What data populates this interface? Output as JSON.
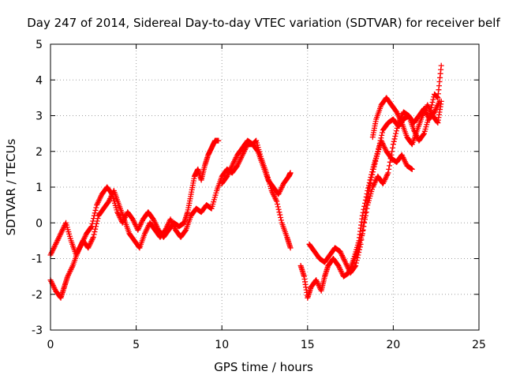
{
  "chart_data": {
    "type": "scatter",
    "title": "Day 247 of 2014, Sidereal Day-to-day VTEC variation (SDTVAR) for receiver belf",
    "xlabel": "GPS time / hours",
    "ylabel": "SDTVAR / TECUs",
    "xlim": [
      0,
      25
    ],
    "ylim": [
      -3,
      5
    ],
    "xticks": [
      0,
      5,
      10,
      15,
      20,
      25
    ],
    "yticks": [
      -3,
      -2,
      -1,
      0,
      1,
      2,
      3,
      4,
      5
    ],
    "grid": true,
    "marker": "+",
    "color": "#ff0000",
    "series": [
      {
        "name": "track-1",
        "points": [
          [
            0.0,
            -0.9
          ],
          [
            0.3,
            -0.6
          ],
          [
            0.6,
            -0.3
          ],
          [
            0.9,
            0.0
          ],
          [
            1.2,
            -0.5
          ],
          [
            1.5,
            -0.9
          ],
          [
            1.8,
            -0.6
          ],
          [
            2.1,
            -0.3
          ],
          [
            2.4,
            -0.1
          ],
          [
            2.7,
            0.5
          ],
          [
            3.0,
            0.8
          ],
          [
            3.3,
            1.0
          ],
          [
            3.6,
            0.8
          ],
          [
            3.9,
            0.3
          ],
          [
            4.2,
            0.0
          ],
          [
            4.5,
            0.3
          ],
          [
            4.8,
            0.1
          ],
          [
            5.1,
            -0.2
          ],
          [
            5.4,
            0.1
          ],
          [
            5.7,
            0.3
          ],
          [
            6.0,
            0.1
          ],
          [
            6.3,
            -0.2
          ],
          [
            6.6,
            -0.4
          ],
          [
            6.9,
            -0.2
          ],
          [
            7.2,
            0.0
          ],
          [
            7.5,
            -0.1
          ],
          [
            7.8,
            0.0
          ],
          [
            8.0,
            0.3
          ],
          [
            8.2,
            0.8
          ],
          [
            8.4,
            1.3
          ],
          [
            8.6,
            1.5
          ],
          [
            8.8,
            1.2
          ],
          [
            9.0,
            1.6
          ],
          [
            9.2,
            1.9
          ],
          [
            9.4,
            2.1
          ],
          [
            9.6,
            2.3
          ],
          [
            9.8,
            2.3
          ]
        ]
      },
      {
        "name": "track-2",
        "points": [
          [
            0.0,
            -1.6
          ],
          [
            0.3,
            -1.9
          ],
          [
            0.6,
            -2.1
          ],
          [
            0.8,
            -1.8
          ],
          [
            1.0,
            -1.5
          ],
          [
            1.3,
            -1.2
          ],
          [
            1.6,
            -0.8
          ],
          [
            1.9,
            -0.5
          ],
          [
            2.2,
            -0.7
          ],
          [
            2.5,
            -0.4
          ],
          [
            2.8,
            0.2
          ],
          [
            3.1,
            0.4
          ],
          [
            3.4,
            0.6
          ],
          [
            3.7,
            0.9
          ],
          [
            4.0,
            0.5
          ],
          [
            4.3,
            0.1
          ],
          [
            4.6,
            -0.3
          ],
          [
            4.9,
            -0.5
          ],
          [
            5.2,
            -0.7
          ],
          [
            5.5,
            -0.3
          ],
          [
            5.8,
            0.0
          ],
          [
            6.1,
            -0.2
          ],
          [
            6.4,
            -0.4
          ],
          [
            6.7,
            -0.2
          ],
          [
            7.0,
            0.1
          ],
          [
            7.3,
            -0.2
          ],
          [
            7.6,
            -0.4
          ],
          [
            7.9,
            -0.2
          ],
          [
            8.2,
            0.2
          ],
          [
            8.5,
            0.4
          ],
          [
            8.8,
            0.3
          ],
          [
            9.1,
            0.5
          ],
          [
            9.4,
            0.4
          ],
          [
            9.7,
            0.9
          ],
          [
            10.0,
            1.3
          ],
          [
            10.3,
            1.5
          ],
          [
            10.6,
            1.4
          ],
          [
            10.9,
            1.6
          ],
          [
            11.2,
            1.9
          ],
          [
            11.5,
            2.2
          ],
          [
            11.8,
            2.2
          ],
          [
            12.1,
            2.0
          ],
          [
            12.4,
            1.6
          ],
          [
            12.7,
            1.2
          ],
          [
            13.0,
            1.0
          ],
          [
            13.3,
            0.8
          ],
          [
            13.6,
            1.1
          ],
          [
            13.9,
            1.3
          ],
          [
            14.0,
            1.4
          ]
        ]
      },
      {
        "name": "track-3",
        "points": [
          [
            10.0,
            1.1
          ],
          [
            10.3,
            1.3
          ],
          [
            10.6,
            1.6
          ],
          [
            10.9,
            1.9
          ],
          [
            11.2,
            2.1
          ],
          [
            11.5,
            2.3
          ],
          [
            11.8,
            2.2
          ],
          [
            12.0,
            2.3
          ],
          [
            12.3,
            1.8
          ],
          [
            12.6,
            1.4
          ],
          [
            12.9,
            0.9
          ],
          [
            13.2,
            0.6
          ],
          [
            13.5,
            0.0
          ],
          [
            13.8,
            -0.4
          ],
          [
            14.0,
            -0.7
          ]
        ]
      },
      {
        "name": "track-4",
        "points": [
          [
            14.6,
            -1.2
          ],
          [
            14.8,
            -1.5
          ],
          [
            15.0,
            -2.1
          ],
          [
            15.2,
            -1.8
          ],
          [
            15.5,
            -1.6
          ],
          [
            15.8,
            -1.9
          ],
          [
            16.0,
            -1.5
          ],
          [
            16.2,
            -1.2
          ],
          [
            16.5,
            -1.0
          ],
          [
            16.8,
            -1.2
          ],
          [
            17.1,
            -1.5
          ],
          [
            17.4,
            -1.4
          ],
          [
            17.7,
            -1.0
          ],
          [
            18.0,
            -0.5
          ],
          [
            18.2,
            0.2
          ],
          [
            18.5,
            0.9
          ],
          [
            18.8,
            1.5
          ],
          [
            19.1,
            2.0
          ],
          [
            19.4,
            2.6
          ],
          [
            19.7,
            2.8
          ],
          [
            20.0,
            2.9
          ],
          [
            20.3,
            2.7
          ],
          [
            20.6,
            2.9
          ],
          [
            20.9,
            3.0
          ],
          [
            21.2,
            2.8
          ],
          [
            21.5,
            3.0
          ],
          [
            21.8,
            3.2
          ],
          [
            22.1,
            2.9
          ],
          [
            22.4,
            3.1
          ],
          [
            22.7,
            3.4
          ]
        ]
      },
      {
        "name": "track-5",
        "points": [
          [
            15.1,
            -0.6
          ],
          [
            15.4,
            -0.8
          ],
          [
            15.7,
            -1.0
          ],
          [
            16.0,
            -1.1
          ],
          [
            16.3,
            -0.9
          ],
          [
            16.6,
            -0.7
          ],
          [
            16.9,
            -0.8
          ],
          [
            17.2,
            -1.1
          ],
          [
            17.5,
            -1.4
          ],
          [
            17.8,
            -1.2
          ],
          [
            18.1,
            -0.6
          ],
          [
            18.4,
            0.4
          ],
          [
            18.7,
            1.2
          ],
          [
            19.0,
            1.8
          ],
          [
            19.3,
            2.3
          ],
          [
            19.6,
            2.0
          ],
          [
            19.9,
            1.8
          ],
          [
            20.2,
            1.7
          ],
          [
            20.5,
            1.9
          ],
          [
            20.8,
            1.6
          ],
          [
            21.1,
            1.5
          ]
        ]
      },
      {
        "name": "track-6",
        "points": [
          [
            17.6,
            -1.2
          ],
          [
            17.9,
            -0.8
          ],
          [
            18.2,
            -0.3
          ],
          [
            18.5,
            0.5
          ],
          [
            18.8,
            1.0
          ],
          [
            19.1,
            1.3
          ],
          [
            19.4,
            1.1
          ],
          [
            19.7,
            1.4
          ],
          [
            20.0,
            2.2
          ],
          [
            20.3,
            2.8
          ],
          [
            20.6,
            3.1
          ],
          [
            20.9,
            3.0
          ],
          [
            21.2,
            2.6
          ],
          [
            21.5,
            2.3
          ],
          [
            21.8,
            2.5
          ],
          [
            22.1,
            3.0
          ],
          [
            22.4,
            3.6
          ],
          [
            22.6,
            3.5
          ],
          [
            22.8,
            4.4
          ]
        ]
      },
      {
        "name": "track-7",
        "points": [
          [
            18.8,
            2.4
          ],
          [
            19.0,
            2.9
          ],
          [
            19.3,
            3.3
          ],
          [
            19.6,
            3.5
          ],
          [
            19.9,
            3.3
          ],
          [
            20.2,
            3.1
          ],
          [
            20.5,
            2.8
          ],
          [
            20.8,
            2.4
          ],
          [
            21.1,
            2.2
          ],
          [
            21.4,
            2.6
          ],
          [
            21.7,
            3.0
          ],
          [
            22.0,
            3.3
          ],
          [
            22.3,
            3.0
          ],
          [
            22.6,
            2.8
          ],
          [
            22.8,
            3.4
          ]
        ]
      }
    ]
  }
}
